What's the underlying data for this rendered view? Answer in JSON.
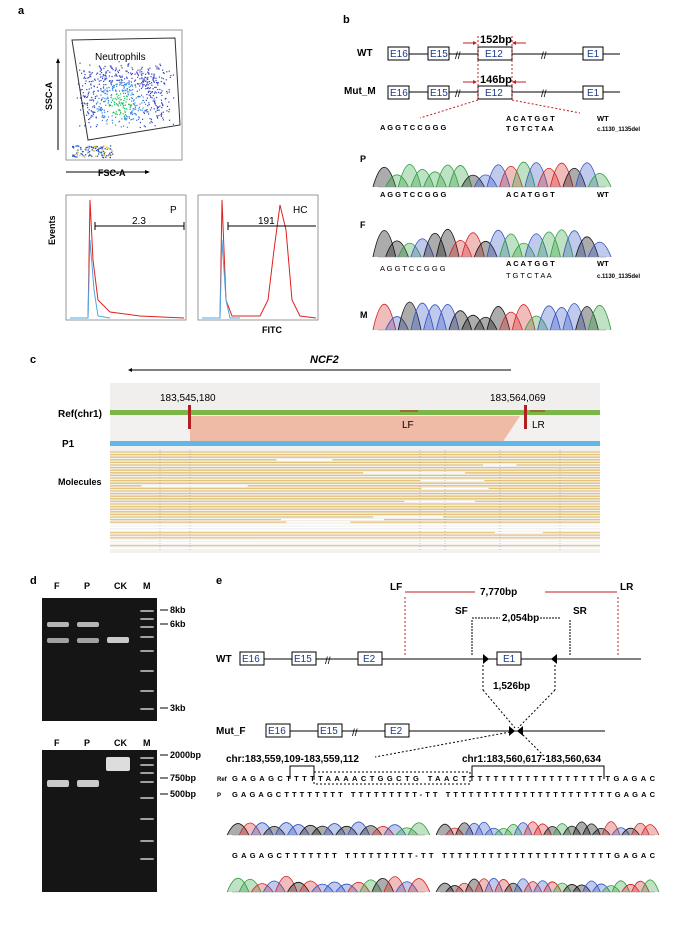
{
  "panels": {
    "a": "a",
    "b": "b",
    "c": "c",
    "d": "d",
    "e": "e"
  },
  "a": {
    "gate_label": "Neutrophils",
    "y_axis": "SSC-A",
    "x_axis": "FSC-A",
    "hist_y_axis": "Events",
    "hist_x_axis": "FITC",
    "hist": [
      {
        "name": "P",
        "value": "2.3"
      },
      {
        "name": "HC",
        "value": "191"
      }
    ]
  },
  "b": {
    "rows": [
      "WT",
      "Mut_M"
    ],
    "exons": [
      "E16",
      "E15",
      "E12",
      "E1"
    ],
    "wt_size": "152bp",
    "mut_size": "146bp",
    "seq_left": "A G G T C C G G G",
    "seq_right_wt": "A C A T G G T",
    "seq_right_mut": "T G T C T A A",
    "tag_wt": "WT",
    "tag_mut": "c.1130_1135del",
    "samples": [
      "P",
      "F",
      "M"
    ]
  },
  "c": {
    "gene": "NCF2",
    "pos_left": "183,545,180",
    "pos_right": "183,564,069",
    "ref_label": "Ref(chr1)",
    "p1_label": "P1",
    "molecules_label": "Molecules",
    "lf": "LF",
    "lr": "LR"
  },
  "d": {
    "lanes": [
      "F",
      "P",
      "CK",
      "M"
    ],
    "gel1_markers": [
      "8kb",
      "6kb",
      "3kb"
    ],
    "gel2_markers": [
      "2000bp",
      "750bp",
      "500bp"
    ]
  },
  "e": {
    "lf": "LF",
    "lr": "LR",
    "sf": "SF",
    "sr": "SR",
    "long_size": "7,770bp",
    "short_size": "2,054bp",
    "del_size": "1,526bp",
    "wt_label": "WT",
    "mut_label": "Mut_F",
    "exons_wt": [
      "E16",
      "E15",
      "E2",
      "E1"
    ],
    "exons_mut": [
      "E16",
      "E15",
      "E2"
    ],
    "bp_left": "chr:183,559,109-183,559,112",
    "bp_right": "chr1:183,560,617-183,560,634",
    "ref_tag": "Ref",
    "p_tag": "P",
    "ref_seq": "GAGAGCTTTTTAAAACTGGCTG    TAACTTTTTTTTTTTTTTTTTTTGAGAC",
    "p_seq": "GAGAGCTTTTTTTT TTTTTTTTT-TT TTTTTTTTTTTTTTTTTTTTTTGAGAC",
    "m_seq": "GAGAGCTTTTTTT TTTTTTTTT-TT TTTTTTTTTTTTTTTTTTTTTTGAGAC"
  }
}
